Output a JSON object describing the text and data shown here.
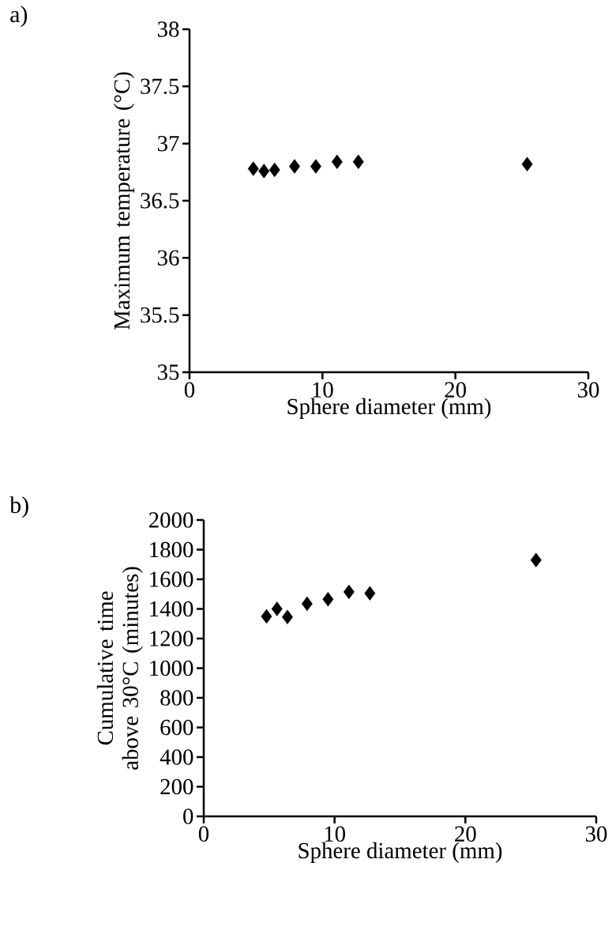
{
  "chart_data": [
    {
      "type": "scatter",
      "xlabel": "Sphere diameter (mm)",
      "ylabel": "Maximum temperature (°C)",
      "annotations": [
        "a)"
      ],
      "marker": "diamond",
      "x": [
        4.8,
        5.6,
        6.4,
        7.9,
        9.5,
        11.1,
        12.7,
        25.4
      ],
      "series": [
        {
          "color": "#000000",
          "values": [
            36.78,
            36.76,
            36.77,
            36.8,
            36.8,
            36.84,
            36.84,
            36.82
          ]
        }
      ],
      "xlim": [
        0,
        30
      ],
      "xticks": [
        0,
        10,
        20,
        30
      ],
      "ylim": [
        35,
        38
      ],
      "yticks": [
        35,
        35.5,
        36,
        36.5,
        37,
        37.5,
        38
      ]
    },
    {
      "type": "scatter",
      "xlabel": "Sphere diameter (mm)",
      "ylabel": "Cumulative time above 30°C (minutes)",
      "annotations": [
        "b)"
      ],
      "marker": "diamond",
      "x": [
        4.8,
        5.6,
        6.4,
        7.9,
        9.5,
        11.1,
        12.7,
        25.4
      ],
      "series": [
        {
          "color": "#000000",
          "values": [
            1350,
            1400,
            1345,
            1435,
            1465,
            1515,
            1505,
            1730
          ]
        }
      ],
      "xlim": [
        0,
        30
      ],
      "xticks": [
        0,
        10,
        20,
        30
      ],
      "ylim": [
        0,
        2000
      ],
      "yticks": [
        0,
        200,
        400,
        600,
        800,
        1000,
        1200,
        1400,
        1600,
        1800,
        2000
      ]
    }
  ]
}
